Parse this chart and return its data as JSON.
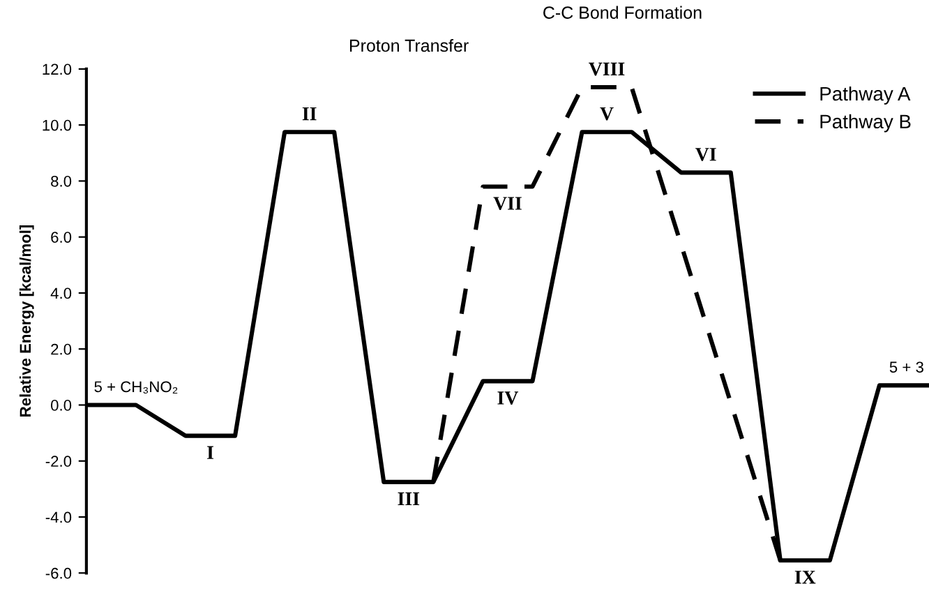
{
  "chart_data": {
    "type": "line",
    "ylabel": "Relative Energy [kcal/mol]",
    "categories": [
      null,
      null,
      null,
      null,
      null,
      null,
      null,
      null,
      null,
      null,
      null,
      null,
      null,
      null,
      null,
      null,
      null,
      null
    ],
    "series": [
      {
        "name": "Pathway A",
        "color": "#000000",
        "line_style": "solid",
        "values": [
          0,
          0,
          -1.1,
          -1.1,
          9.75,
          9.75,
          -2.75,
          -2.75,
          0.85,
          0.85,
          9.75,
          9.75,
          8.3,
          8.3,
          -5.55,
          -5.55,
          0.7,
          0.7
        ]
      },
      {
        "name": "Pathway B",
        "color": "#000000",
        "line_style": "dashed",
        "values": [
          null,
          null,
          null,
          null,
          null,
          null,
          null,
          -2.75,
          7.8,
          7.8,
          11.35,
          11.35,
          5.72,
          0.08,
          -5.55,
          null,
          null,
          null
        ]
      }
    ],
    "ylim": [
      -6,
      12
    ],
    "yticks": [
      {
        "value": -6,
        "label": "-6.0"
      },
      {
        "value": -4,
        "label": "-4.0"
      },
      {
        "value": -2,
        "label": "-2.0"
      },
      {
        "value": 0,
        "label": "0.0"
      },
      {
        "value": 2,
        "label": "2.0"
      },
      {
        "value": 4,
        "label": "4.0"
      },
      {
        "value": 6,
        "label": "6.0"
      },
      {
        "value": 8,
        "label": "8.0"
      },
      {
        "value": 10,
        "label": "10.0"
      },
      {
        "value": 12,
        "label": "12.0"
      }
    ],
    "tick_labels": "y",
    "legend": "top right",
    "annotations": [
      "Proton Transfer",
      "C-C Bond Formation",
      "5 + CH₃NO₂",
      "I",
      "II",
      "III",
      "IV",
      "V",
      "VI",
      "IX",
      "5 + 3",
      "VII",
      "VIII"
    ]
  }
}
